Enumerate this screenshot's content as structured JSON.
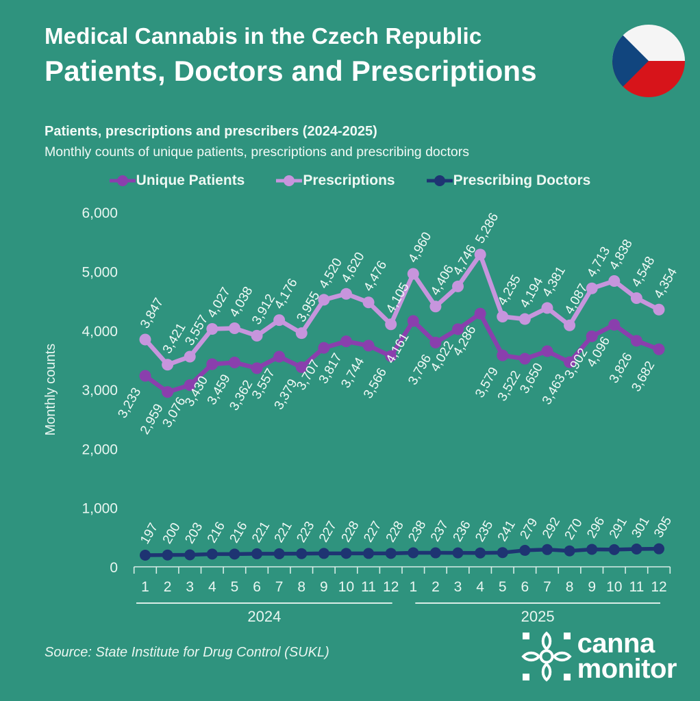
{
  "palette": {
    "background": "#2f937e",
    "text_primary": "#ffffff",
    "text_soft": "#e9f6f1",
    "flag_white": "#f5f5f5",
    "flag_red": "#d7141a",
    "flag_blue": "#11457e"
  },
  "header": {
    "title_line1": "Medical Cannabis in the Czech Republic",
    "title_line2": "Patients, Doctors and Prescriptions"
  },
  "chart_data": {
    "type": "line",
    "title": "Patients, prescriptions and prescribers (2024-2025)",
    "subtitle": "Monthly counts of unique patients, prescriptions and prescribing doctors",
    "ylabel": "Monthly counts",
    "yticks": [
      0,
      1000,
      2000,
      3000,
      4000,
      5000,
      6000
    ],
    "ylim": [
      0,
      6300
    ],
    "grid": false,
    "legend_position": "top",
    "categories": [
      1,
      2,
      3,
      4,
      5,
      6,
      7,
      8,
      9,
      10,
      11,
      12,
      1,
      2,
      3,
      4,
      5,
      6,
      7,
      8,
      9,
      10,
      11,
      12
    ],
    "year_groups": [
      {
        "label": "2024",
        "months": [
          1,
          2,
          3,
          4,
          5,
          6,
          7,
          8,
          9,
          10,
          11,
          12
        ]
      },
      {
        "label": "2025",
        "months": [
          1,
          2,
          3,
          4,
          5,
          6,
          7,
          8,
          9,
          10,
          11,
          12
        ]
      }
    ],
    "series": [
      {
        "name": "Unique Patients",
        "color": "#8a3fad",
        "label_position": "below",
        "line_width": 6.5,
        "dot_radius": 8.5,
        "values": [
          3233,
          2959,
          3076,
          3430,
          3459,
          3362,
          3557,
          3379,
          3707,
          3817,
          3744,
          3566,
          4161,
          3796,
          4022,
          4286,
          3579,
          3522,
          3650,
          3463,
          3902,
          4096,
          3826,
          3682
        ]
      },
      {
        "name": "Prescriptions",
        "color": "#c795dd",
        "label_position": "above",
        "line_width": 6.5,
        "dot_radius": 8.5,
        "values": [
          3847,
          3421,
          3557,
          4027,
          4038,
          3912,
          4176,
          3955,
          4520,
          4620,
          4476,
          4105,
          4960,
          4406,
          4746,
          5286,
          4235,
          4194,
          4381,
          4087,
          4713,
          4838,
          4548,
          4354
        ]
      },
      {
        "name": "Prescribing Doctors",
        "color": "#1e3472",
        "label_position": "above",
        "line_width": 5.5,
        "dot_radius": 8,
        "values": [
          197,
          200,
          203,
          216,
          216,
          221,
          221,
          223,
          227,
          228,
          227,
          228,
          238,
          237,
          236,
          235,
          241,
          279,
          292,
          270,
          296,
          291,
          301,
          305
        ]
      }
    ]
  },
  "footer": {
    "source": "Source: State Institute for Drug Control (SUKL)",
    "logo_line1": "canna",
    "logo_line2": "monitor"
  }
}
